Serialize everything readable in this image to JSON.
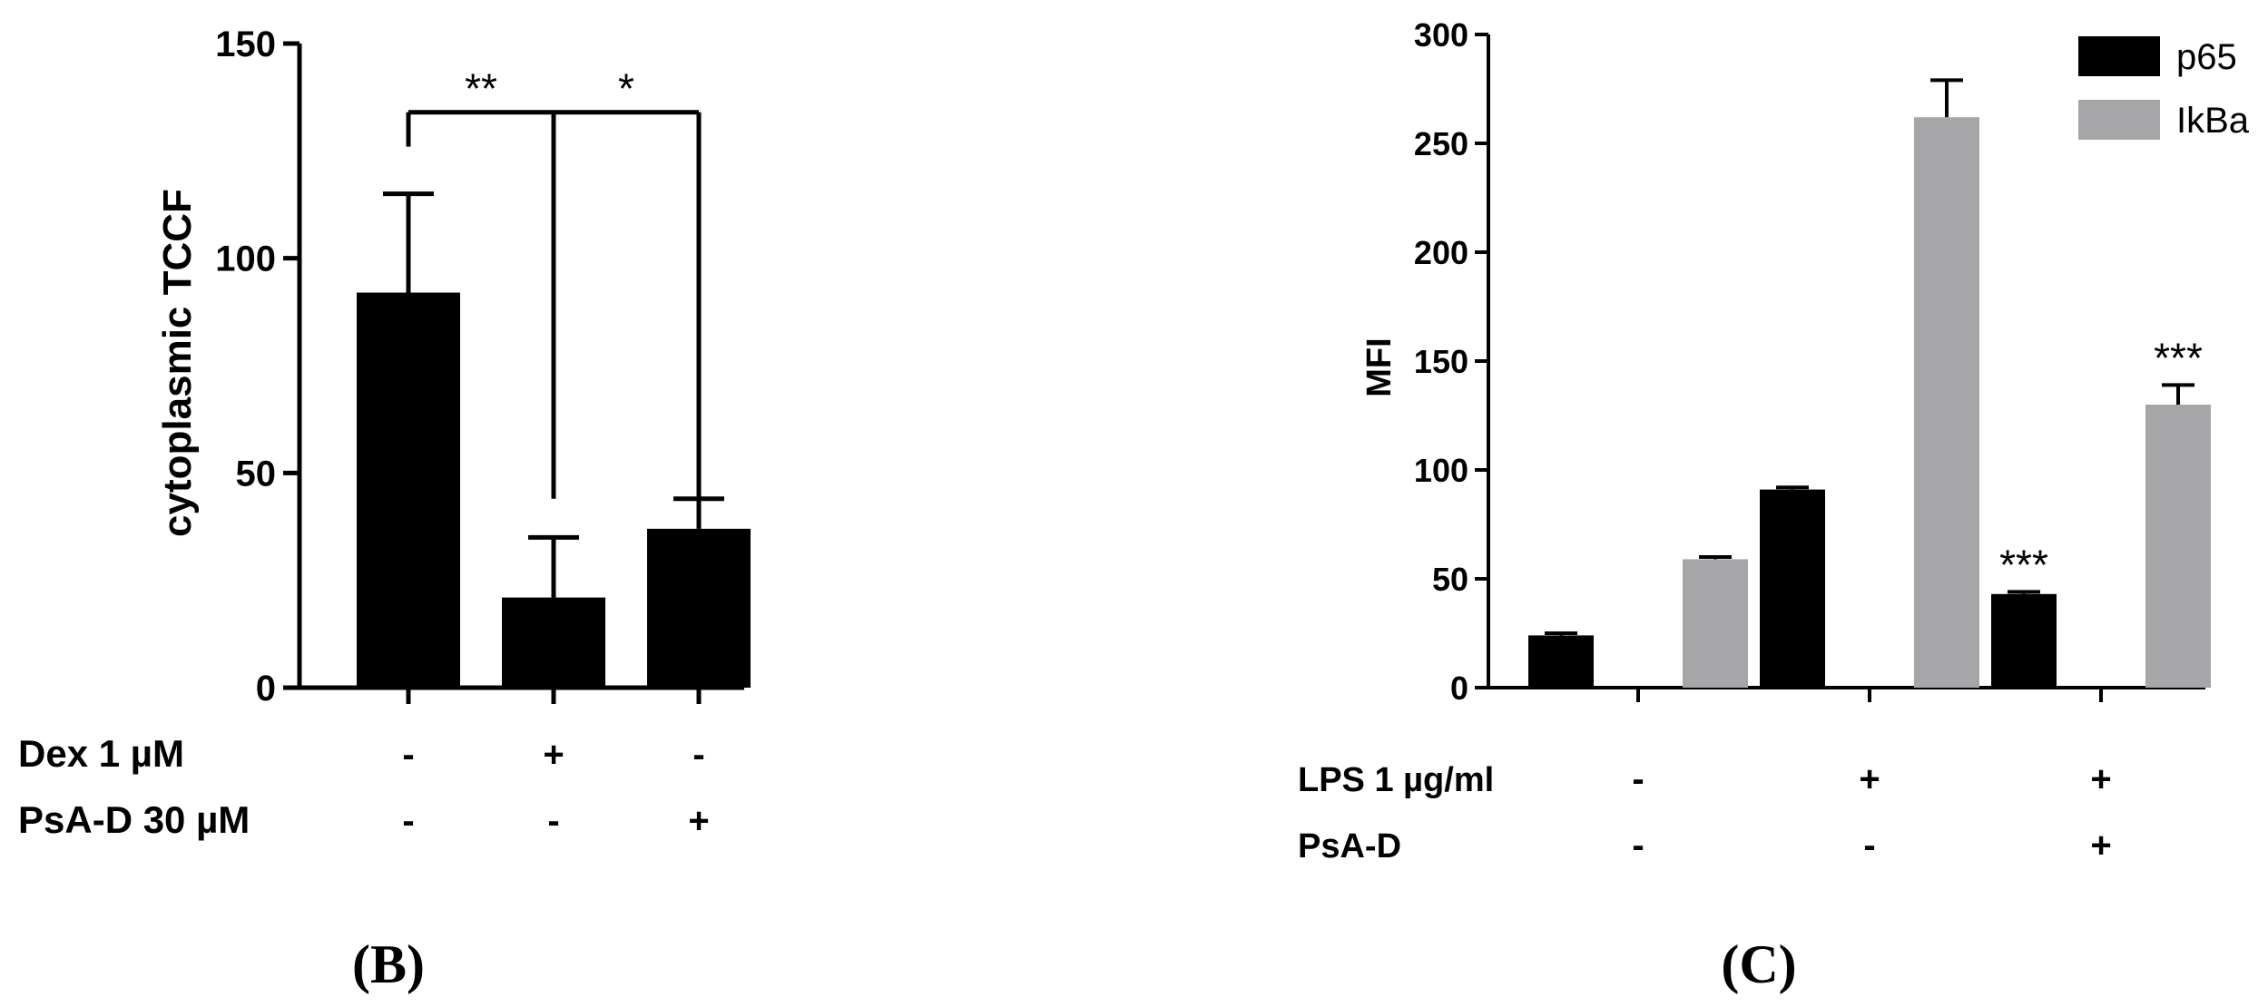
{
  "panels": {
    "b_label": "(B)",
    "c_label": "(C)"
  },
  "chart_data": [
    {
      "type": "bar",
      "ylabel": "cytoplasmic TCCF",
      "ylim": [
        0,
        150
      ],
      "yticks": [
        0,
        50,
        100,
        150
      ],
      "series": [
        {
          "values": [
            92,
            21,
            37
          ],
          "errors": [
            23,
            14,
            7
          ],
          "color": "#000000"
        }
      ],
      "treatments": [
        {
          "label": "Dex 1 µM",
          "signs": [
            "-",
            "+",
            "-"
          ]
        },
        {
          "label": "PsA-D 30 µM",
          "signs": [
            "-",
            "-",
            "+"
          ]
        }
      ],
      "significance": [
        {
          "text": "**",
          "from": 0,
          "to": 1
        },
        {
          "text": "*",
          "from": 1,
          "to": 2
        }
      ]
    },
    {
      "type": "bar",
      "ylabel": "MFI",
      "ylim": [
        0,
        300
      ],
      "yticks": [
        0,
        50,
        100,
        150,
        200,
        250,
        300
      ],
      "series": [
        {
          "name": "p65",
          "values": [
            24,
            91,
            43
          ],
          "errors": [
            1,
            1,
            1
          ],
          "color": "#000000"
        },
        {
          "name": "IkBa",
          "values": [
            59,
            262,
            130
          ],
          "errors": [
            1,
            17,
            9
          ],
          "color": "#a6a6a8"
        }
      ],
      "treatments": [
        {
          "label": "LPS 1 µg/ml",
          "signs": [
            "-",
            "+",
            "+"
          ]
        },
        {
          "label": "PsA-D",
          "signs": [
            "-",
            "-",
            "+"
          ]
        }
      ],
      "annotations": [
        {
          "text": "***",
          "group": 2,
          "series": 0
        },
        {
          "text": "***",
          "group": 2,
          "series": 1
        }
      ],
      "legend": "top-right"
    }
  ]
}
